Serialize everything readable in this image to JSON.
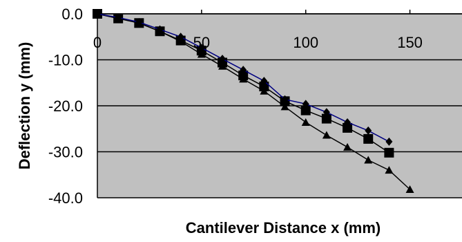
{
  "chart_data": {
    "type": "line",
    "title": "",
    "xlabel": "Cantilever Distance x (mm)",
    "ylabel": "Deflection y (mm)",
    "xlim": [
      0,
      175
    ],
    "ylim": [
      -40,
      0
    ],
    "x_ticks": [
      "0",
      "50",
      "100",
      "150"
    ],
    "y_ticks": [
      "0.0",
      "-10.0",
      "-20.0",
      "-30.0",
      "-40.0"
    ],
    "x_tick_values": [
      0,
      50,
      100,
      150
    ],
    "y_tick_values": [
      0,
      -10,
      -20,
      -30,
      -40
    ],
    "grid": "horizontal",
    "legend": "none",
    "plot_background": "#c0c0c0",
    "series": [
      {
        "marker": "diamond",
        "color": "#000080",
        "x": [
          0,
          10,
          20,
          30,
          40,
          50,
          60,
          70,
          80,
          90,
          100,
          110,
          120,
          130,
          140
        ],
        "y": [
          0,
          -0.8,
          -1.8,
          -3.4,
          -5.0,
          -7.4,
          -9.8,
          -12.2,
          -14.6,
          -18.6,
          -19.6,
          -21.4,
          -23.6,
          -25.4,
          -27.8
        ]
      },
      {
        "marker": "square",
        "color": "#000000",
        "x": [
          0,
          10,
          20,
          30,
          40,
          50,
          60,
          70,
          80,
          90,
          100,
          110,
          120,
          130,
          140
        ],
        "y": [
          0,
          -1.0,
          -2.0,
          -3.8,
          -5.8,
          -8.0,
          -10.6,
          -13.4,
          -15.8,
          -19.0,
          -21.0,
          -22.8,
          -24.8,
          -27.2,
          -30.2
        ]
      },
      {
        "marker": "triangle",
        "color": "#000000",
        "x": [
          0,
          10,
          20,
          30,
          40,
          50,
          60,
          70,
          80,
          90,
          100,
          110,
          120,
          130,
          140,
          150
        ],
        "y": [
          0,
          -1.0,
          -2.0,
          -3.8,
          -6.0,
          -8.8,
          -11.4,
          -14.2,
          -16.8,
          -20.2,
          -23.6,
          -26.4,
          -29.0,
          -31.8,
          -34.0,
          -38.2
        ]
      }
    ]
  }
}
